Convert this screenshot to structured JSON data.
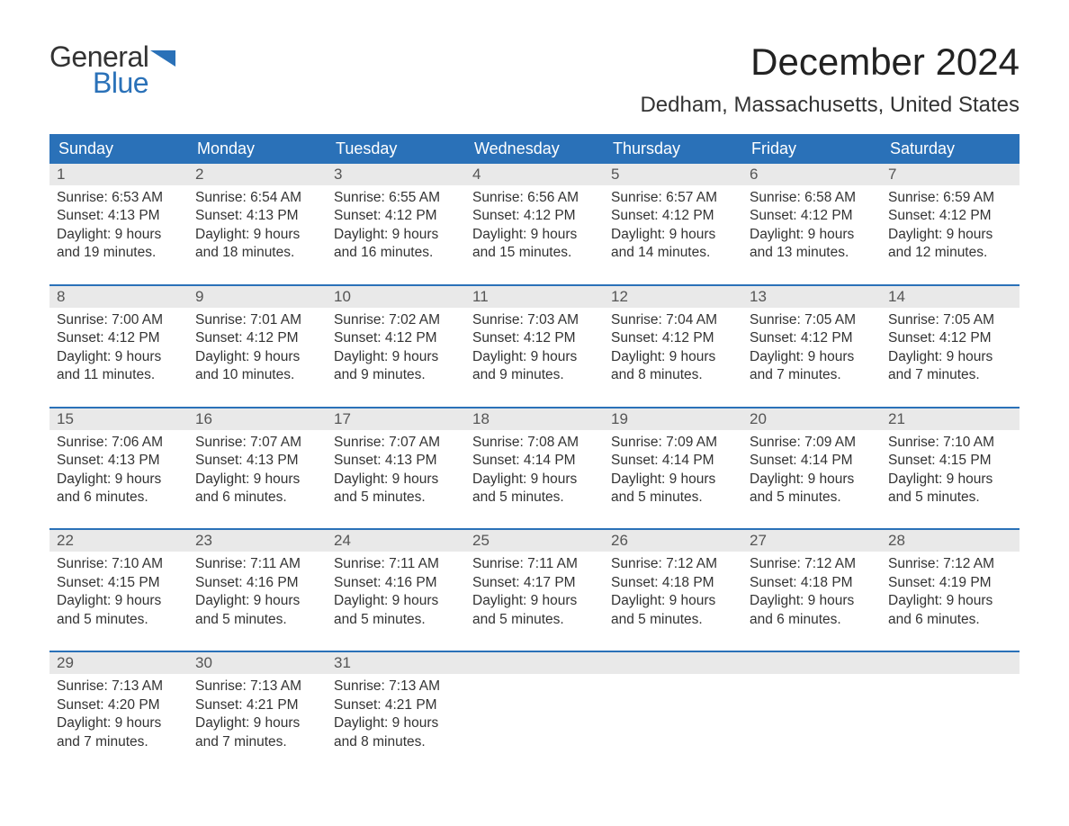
{
  "logo": {
    "text1": "General",
    "text2": "Blue",
    "accent_color": "#2a71b8"
  },
  "title": "December 2024",
  "location": "Dedham, Massachusetts, United States",
  "colors": {
    "header_bg": "#2a71b8",
    "header_text": "#ffffff",
    "daynum_bg": "#e9e9e9",
    "body_text": "#333333",
    "page_bg": "#ffffff"
  },
  "fonts": {
    "title_size_pt": 32,
    "location_size_pt": 18,
    "dayheader_size_pt": 14,
    "body_size_pt": 12
  },
  "day_headers": [
    "Sunday",
    "Monday",
    "Tuesday",
    "Wednesday",
    "Thursday",
    "Friday",
    "Saturday"
  ],
  "labels": {
    "sunrise": "Sunrise:",
    "sunset": "Sunset:",
    "daylight": "Daylight:"
  },
  "weeks": [
    [
      {
        "n": "1",
        "sunrise": "6:53 AM",
        "sunset": "4:13 PM",
        "daylight": "9 hours and 19 minutes."
      },
      {
        "n": "2",
        "sunrise": "6:54 AM",
        "sunset": "4:13 PM",
        "daylight": "9 hours and 18 minutes."
      },
      {
        "n": "3",
        "sunrise": "6:55 AM",
        "sunset": "4:12 PM",
        "daylight": "9 hours and 16 minutes."
      },
      {
        "n": "4",
        "sunrise": "6:56 AM",
        "sunset": "4:12 PM",
        "daylight": "9 hours and 15 minutes."
      },
      {
        "n": "5",
        "sunrise": "6:57 AM",
        "sunset": "4:12 PM",
        "daylight": "9 hours and 14 minutes."
      },
      {
        "n": "6",
        "sunrise": "6:58 AM",
        "sunset": "4:12 PM",
        "daylight": "9 hours and 13 minutes."
      },
      {
        "n": "7",
        "sunrise": "6:59 AM",
        "sunset": "4:12 PM",
        "daylight": "9 hours and 12 minutes."
      }
    ],
    [
      {
        "n": "8",
        "sunrise": "7:00 AM",
        "sunset": "4:12 PM",
        "daylight": "9 hours and 11 minutes."
      },
      {
        "n": "9",
        "sunrise": "7:01 AM",
        "sunset": "4:12 PM",
        "daylight": "9 hours and 10 minutes."
      },
      {
        "n": "10",
        "sunrise": "7:02 AM",
        "sunset": "4:12 PM",
        "daylight": "9 hours and 9 minutes."
      },
      {
        "n": "11",
        "sunrise": "7:03 AM",
        "sunset": "4:12 PM",
        "daylight": "9 hours and 9 minutes."
      },
      {
        "n": "12",
        "sunrise": "7:04 AM",
        "sunset": "4:12 PM",
        "daylight": "9 hours and 8 minutes."
      },
      {
        "n": "13",
        "sunrise": "7:05 AM",
        "sunset": "4:12 PM",
        "daylight": "9 hours and 7 minutes."
      },
      {
        "n": "14",
        "sunrise": "7:05 AM",
        "sunset": "4:12 PM",
        "daylight": "9 hours and 7 minutes."
      }
    ],
    [
      {
        "n": "15",
        "sunrise": "7:06 AM",
        "sunset": "4:13 PM",
        "daylight": "9 hours and 6 minutes."
      },
      {
        "n": "16",
        "sunrise": "7:07 AM",
        "sunset": "4:13 PM",
        "daylight": "9 hours and 6 minutes."
      },
      {
        "n": "17",
        "sunrise": "7:07 AM",
        "sunset": "4:13 PM",
        "daylight": "9 hours and 5 minutes."
      },
      {
        "n": "18",
        "sunrise": "7:08 AM",
        "sunset": "4:14 PM",
        "daylight": "9 hours and 5 minutes."
      },
      {
        "n": "19",
        "sunrise": "7:09 AM",
        "sunset": "4:14 PM",
        "daylight": "9 hours and 5 minutes."
      },
      {
        "n": "20",
        "sunrise": "7:09 AM",
        "sunset": "4:14 PM",
        "daylight": "9 hours and 5 minutes."
      },
      {
        "n": "21",
        "sunrise": "7:10 AM",
        "sunset": "4:15 PM",
        "daylight": "9 hours and 5 minutes."
      }
    ],
    [
      {
        "n": "22",
        "sunrise": "7:10 AM",
        "sunset": "4:15 PM",
        "daylight": "9 hours and 5 minutes."
      },
      {
        "n": "23",
        "sunrise": "7:11 AM",
        "sunset": "4:16 PM",
        "daylight": "9 hours and 5 minutes."
      },
      {
        "n": "24",
        "sunrise": "7:11 AM",
        "sunset": "4:16 PM",
        "daylight": "9 hours and 5 minutes."
      },
      {
        "n": "25",
        "sunrise": "7:11 AM",
        "sunset": "4:17 PM",
        "daylight": "9 hours and 5 minutes."
      },
      {
        "n": "26",
        "sunrise": "7:12 AM",
        "sunset": "4:18 PM",
        "daylight": "9 hours and 5 minutes."
      },
      {
        "n": "27",
        "sunrise": "7:12 AM",
        "sunset": "4:18 PM",
        "daylight": "9 hours and 6 minutes."
      },
      {
        "n": "28",
        "sunrise": "7:12 AM",
        "sunset": "4:19 PM",
        "daylight": "9 hours and 6 minutes."
      }
    ],
    [
      {
        "n": "29",
        "sunrise": "7:13 AM",
        "sunset": "4:20 PM",
        "daylight": "9 hours and 7 minutes."
      },
      {
        "n": "30",
        "sunrise": "7:13 AM",
        "sunset": "4:21 PM",
        "daylight": "9 hours and 7 minutes."
      },
      {
        "n": "31",
        "sunrise": "7:13 AM",
        "sunset": "4:21 PM",
        "daylight": "9 hours and 8 minutes."
      },
      {
        "empty": true
      },
      {
        "empty": true
      },
      {
        "empty": true
      },
      {
        "empty": true
      }
    ]
  ]
}
